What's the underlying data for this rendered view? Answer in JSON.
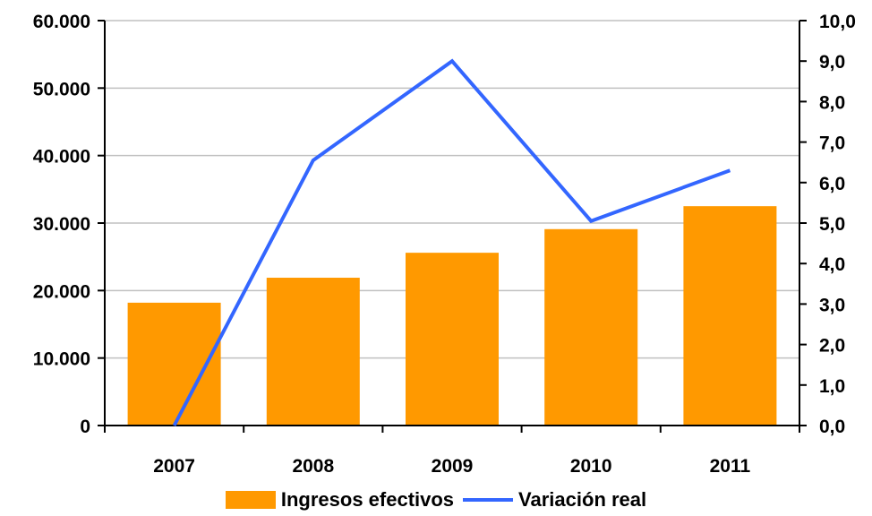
{
  "chart_data": {
    "type": "bar",
    "categories": [
      "2007",
      "2008",
      "2009",
      "2010",
      "2011"
    ],
    "series": [
      {
        "name": "Ingresos efectivos",
        "type": "bar",
        "axis": "left",
        "values": [
          18200,
          21900,
          25600,
          29100,
          32500
        ],
        "color": "#FF9900"
      },
      {
        "name": "Variación real",
        "type": "line",
        "axis": "right",
        "values": [
          0.0,
          6.55,
          9.0,
          5.05,
          6.3
        ],
        "color": "#3366FF"
      }
    ],
    "y_left": {
      "ylim": [
        0,
        60000
      ],
      "ticks": [
        0,
        10000,
        20000,
        30000,
        40000,
        50000,
        60000
      ],
      "tick_labels": [
        "0",
        "10.000",
        "20.000",
        "30.000",
        "40.000",
        "50.000",
        "60.000"
      ]
    },
    "y_right": {
      "ylim": [
        0,
        10
      ],
      "ticks": [
        0,
        1,
        2,
        3,
        4,
        5,
        6,
        7,
        8,
        9,
        10
      ],
      "tick_labels": [
        "0,0",
        "1,0",
        "2,0",
        "3,0",
        "4,0",
        "5,0",
        "6,0",
        "7,0",
        "8,0",
        "9,0",
        "10,0"
      ]
    },
    "grid": "horizontal",
    "legend_position": "bottom",
    "title": "",
    "xlabel": "",
    "ylabel": ""
  },
  "legend": {
    "bar_label": "Ingresos efectivos",
    "line_label": "Variación real"
  },
  "colors": {
    "bar": "#FF9900",
    "line": "#3366FF",
    "grid": "#C0C0C0",
    "axis": "#000000"
  }
}
